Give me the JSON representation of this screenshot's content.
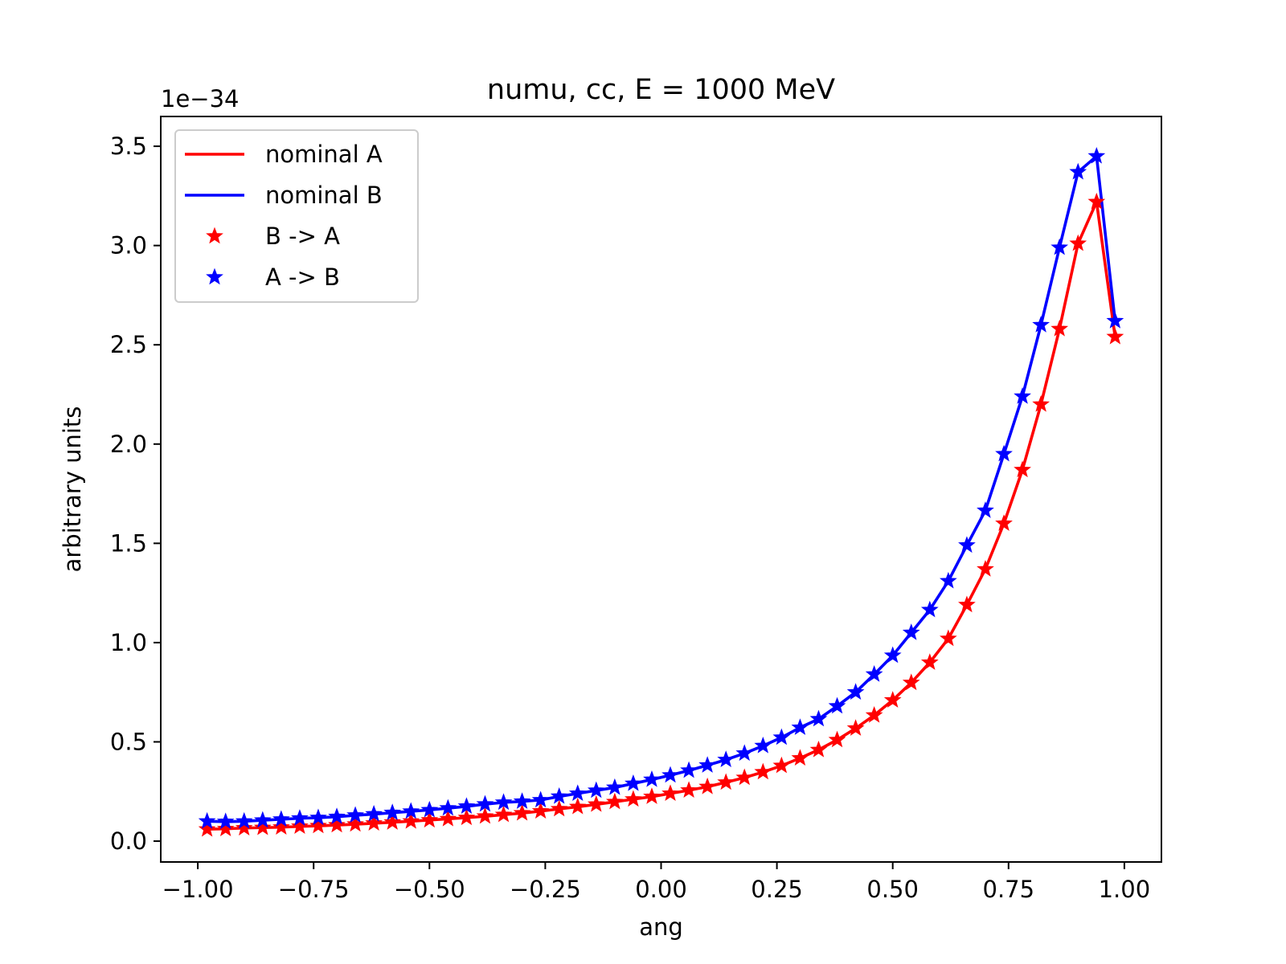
{
  "chart_data": {
    "type": "line",
    "title": "numu, cc, E = 1000 MeV",
    "xlabel": "ang",
    "ylabel": "arbitrary units",
    "y_scale_label": "1e−34",
    "xlim": [
      -1.08,
      1.08
    ],
    "ylim": [
      -0.105,
      3.65
    ],
    "x_ticks": [
      -1.0,
      -0.75,
      -0.5,
      -0.25,
      0.0,
      0.25,
      0.5,
      0.75,
      1.0
    ],
    "x_tick_labels": [
      "−1.00",
      "−0.75",
      "−0.50",
      "−0.25",
      "0.00",
      "0.25",
      "0.50",
      "0.75",
      "1.00"
    ],
    "y_ticks": [
      0.0,
      0.5,
      1.0,
      1.5,
      2.0,
      2.5,
      3.0,
      3.5
    ],
    "y_tick_labels": [
      "0.0",
      "0.5",
      "1.0",
      "1.5",
      "2.0",
      "2.5",
      "3.0",
      "3.5"
    ],
    "grid": false,
    "legend_position": "top-left",
    "x": [
      -0.98,
      -0.94,
      -0.9,
      -0.86,
      -0.82,
      -0.78,
      -0.74,
      -0.7,
      -0.66,
      -0.62,
      -0.58,
      -0.54,
      -0.5,
      -0.46,
      -0.42,
      -0.38,
      -0.34,
      -0.3,
      -0.26,
      -0.22,
      -0.18,
      -0.14,
      -0.1,
      -0.06,
      -0.02,
      0.02,
      0.06,
      0.1,
      0.14,
      0.18,
      0.22,
      0.26,
      0.3,
      0.34,
      0.38,
      0.42,
      0.46,
      0.5,
      0.54,
      0.58,
      0.62,
      0.66,
      0.7,
      0.74,
      0.78,
      0.82,
      0.86,
      0.9,
      0.94,
      0.98
    ],
    "series": [
      {
        "name": "nominal A",
        "kind": "line",
        "color": "#ff0000",
        "values": [
          0.06,
          0.062,
          0.066,
          0.068,
          0.07,
          0.074,
          0.077,
          0.081,
          0.085,
          0.09,
          0.095,
          0.1,
          0.106,
          0.112,
          0.118,
          0.125,
          0.133,
          0.141,
          0.151,
          0.162,
          0.173,
          0.185,
          0.198,
          0.211,
          0.224,
          0.24,
          0.256,
          0.274,
          0.296,
          0.32,
          0.348,
          0.38,
          0.418,
          0.46,
          0.51,
          0.568,
          0.634,
          0.71,
          0.798,
          0.9,
          1.02,
          1.19,
          1.37,
          1.6,
          1.87,
          2.2,
          2.58,
          3.01,
          3.22,
          2.54
        ]
      },
      {
        "name": "nominal B",
        "kind": "line",
        "color": "#0000ff",
        "values": [
          0.1,
          0.098,
          0.1,
          0.105,
          0.11,
          0.115,
          0.118,
          0.123,
          0.13,
          0.136,
          0.143,
          0.15,
          0.157,
          0.166,
          0.175,
          0.186,
          0.195,
          0.2,
          0.207,
          0.225,
          0.24,
          0.255,
          0.27,
          0.29,
          0.31,
          0.332,
          0.356,
          0.382,
          0.41,
          0.442,
          0.48,
          0.522,
          0.572,
          0.615,
          0.68,
          0.75,
          0.84,
          0.935,
          1.05,
          1.165,
          1.31,
          1.49,
          1.665,
          1.95,
          2.24,
          2.6,
          2.99,
          3.37,
          3.45,
          2.62
        ]
      },
      {
        "name": "B -> A",
        "kind": "markers",
        "marker": "star",
        "color": "#ff0000",
        "values": [
          0.06,
          0.062,
          0.066,
          0.068,
          0.07,
          0.074,
          0.077,
          0.081,
          0.085,
          0.09,
          0.095,
          0.1,
          0.106,
          0.112,
          0.118,
          0.125,
          0.133,
          0.141,
          0.151,
          0.162,
          0.173,
          0.185,
          0.198,
          0.211,
          0.224,
          0.24,
          0.256,
          0.274,
          0.296,
          0.32,
          0.348,
          0.38,
          0.418,
          0.46,
          0.51,
          0.568,
          0.634,
          0.71,
          0.798,
          0.9,
          1.02,
          1.19,
          1.37,
          1.6,
          1.87,
          2.2,
          2.58,
          3.01,
          3.22,
          2.54
        ]
      },
      {
        "name": "A -> B",
        "kind": "markers",
        "marker": "star",
        "color": "#0000ff",
        "values": [
          0.1,
          0.098,
          0.1,
          0.105,
          0.11,
          0.115,
          0.118,
          0.123,
          0.13,
          0.136,
          0.143,
          0.15,
          0.157,
          0.166,
          0.175,
          0.186,
          0.195,
          0.2,
          0.207,
          0.225,
          0.24,
          0.255,
          0.27,
          0.29,
          0.31,
          0.332,
          0.356,
          0.382,
          0.41,
          0.442,
          0.48,
          0.522,
          0.572,
          0.615,
          0.68,
          0.75,
          0.84,
          0.935,
          1.05,
          1.165,
          1.31,
          1.49,
          1.665,
          1.95,
          2.24,
          2.6,
          2.99,
          3.37,
          3.45,
          2.62
        ]
      }
    ]
  }
}
